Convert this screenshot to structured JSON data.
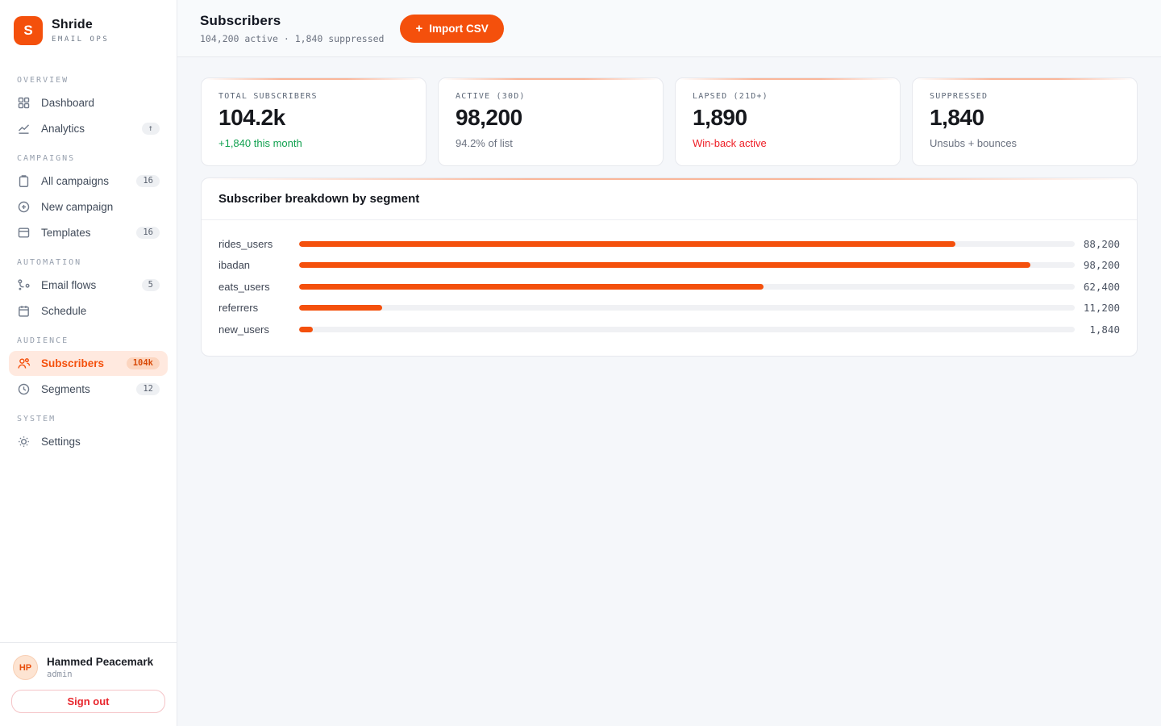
{
  "brand": {
    "logo_letter": "S",
    "name": "Shride",
    "tagline": "EMAIL OPS"
  },
  "colors": {
    "brand_orange": "#f4500c",
    "active_item_bg": "#ffe9df",
    "positive_green": "#12a150",
    "alert_red": "#ee1d25"
  },
  "sidebar": {
    "sections": [
      {
        "label": "OVERVIEW",
        "items": [
          {
            "label": "Dashboard",
            "badge": ""
          },
          {
            "label": "Analytics",
            "badge": "↑"
          }
        ]
      },
      {
        "label": "CAMPAIGNS",
        "items": [
          {
            "label": "All campaigns",
            "badge": "16"
          },
          {
            "label": "New campaign",
            "badge": ""
          },
          {
            "label": "Templates",
            "badge": "16"
          }
        ]
      },
      {
        "label": "AUTOMATION",
        "items": [
          {
            "label": "Email flows",
            "badge": "5"
          },
          {
            "label": "Schedule",
            "badge": ""
          }
        ]
      },
      {
        "label": "AUDIENCE",
        "items": [
          {
            "label": "Subscribers",
            "badge": "104k"
          },
          {
            "label": "Segments",
            "badge": "12"
          }
        ]
      },
      {
        "label": "SYSTEM",
        "items": [
          {
            "label": "Settings",
            "badge": ""
          }
        ]
      }
    ],
    "user": {
      "initials": "HP",
      "name": "Hammed Peacemark",
      "role": "admin",
      "signout_label": "Sign out"
    }
  },
  "header": {
    "title": "Subscribers",
    "subtitle": "104,200 active · 1,840 suppressed",
    "import_button": "Import CSV",
    "import_icon": "+"
  },
  "stats": [
    {
      "label": "TOTAL SUBSCRIBERS",
      "value": "104.2k",
      "note": "+1,840 this month",
      "note_color": "#12a150"
    },
    {
      "label": "ACTIVE (30D)",
      "value": "98,200",
      "note": "94.2% of list",
      "note_color": "#6b7280"
    },
    {
      "label": "LAPSED (21D+)",
      "value": "1,890",
      "note": "Win-back active",
      "note_color": "#ee1d25"
    },
    {
      "label": "SUPPRESSED",
      "value": "1,840",
      "note": "Unsubs + bounces",
      "note_color": "#6b7280"
    }
  ],
  "chart_data": {
    "type": "bar",
    "orientation": "horizontal",
    "title": "Subscriber breakdown by segment",
    "categories": [
      "rides_users",
      "ibadan",
      "eats_users",
      "referrers",
      "new_users"
    ],
    "values": [
      88200,
      98200,
      62400,
      11200,
      1840
    ],
    "value_labels": [
      "88,200",
      "98,200",
      "62,400",
      "11,200",
      "1,840"
    ],
    "total": 104200,
    "bar_color": "#f4500c",
    "track_color": "#f0f1f4",
    "grid": false,
    "legend": false
  }
}
